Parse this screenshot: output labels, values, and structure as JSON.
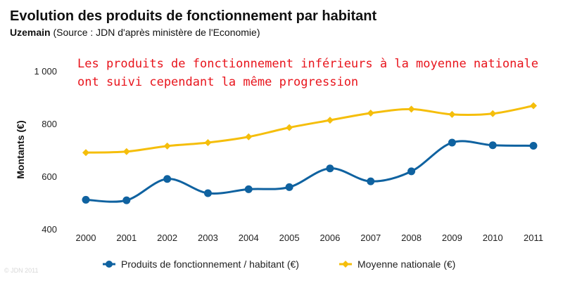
{
  "chart_data": {
    "type": "line",
    "title": "Evolution des produits de fonctionnement par habitant",
    "subtitle_strong": "Uzemain",
    "subtitle_rest": " (Source : JDN d'après ministère de l'Economie)",
    "annotation_lines": [
      "Les produits de fonctionnement inférieurs à la moyenne nationale",
      "ont suivi cependant la même progression"
    ],
    "ylabel": "Montants (€)",
    "ylim": [
      400,
      1000
    ],
    "yticks": [
      {
        "value": 400,
        "label": "400"
      },
      {
        "value": 600,
        "label": "600"
      },
      {
        "value": 800,
        "label": "800"
      },
      {
        "value": 1000,
        "label": "1 000"
      }
    ],
    "x": [
      "2000",
      "2001",
      "2002",
      "2003",
      "2004",
      "2005",
      "2006",
      "2007",
      "2008",
      "2009",
      "2010",
      "2011"
    ],
    "series": [
      {
        "name": "Produits de fonctionnement / habitant (€)",
        "color": "#0f62a0",
        "marker": "circle",
        "values": [
          511,
          509,
          590,
          536,
          551,
          559,
          630,
          581,
          619,
          728,
          718,
          716
        ]
      },
      {
        "name": "Moyenne nationale (€)",
        "color": "#f5be0b",
        "marker": "diamond",
        "values": [
          690,
          694,
          715,
          728,
          750,
          785,
          813,
          840,
          855,
          835,
          838,
          868
        ]
      }
    ],
    "legend_position": "bottom",
    "grid": false,
    "watermark": "© JDN 2011"
  }
}
